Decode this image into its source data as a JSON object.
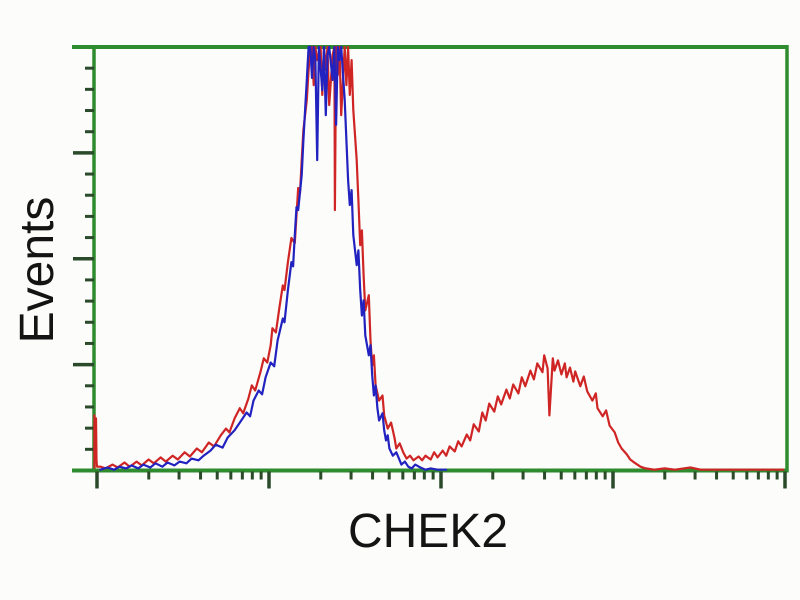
{
  "figure": {
    "background": "#fcfcfa",
    "colors": {
      "axis": "#2e8b2e",
      "tick": "#2a4a2a",
      "blue_series": "#2222c0",
      "red_series": "#cf2525",
      "label_text": "#141414"
    }
  },
  "chart_data": {
    "type": "line",
    "subtype": "flow-cytometry-histogram-overlay",
    "title": "",
    "xlabel": "CHEK2",
    "ylabel": "Events",
    "x_axis": {
      "scale": "log",
      "decades": 4,
      "numeric_labels_visible": false
    },
    "y_axis": {
      "scale": "linear",
      "range": [
        0,
        1
      ],
      "major_intervals": 4,
      "minor_ticks_per_major": 5,
      "numeric_labels_visible": false
    },
    "legend": null,
    "grid": false,
    "series": [
      {
        "name": "red-histogram-CHEK2-antibody",
        "color": "#cf2525",
        "points": [
          [
            -0.015,
            0.007
          ],
          [
            -0.015,
            0.13
          ],
          [
            -0.009,
            0.059
          ],
          [
            -0.006,
            0.123
          ],
          [
            -0.003,
            0.024
          ],
          [
            0.0,
            0.009
          ],
          [
            0.02,
            0.009
          ],
          [
            0.05,
            0.005
          ],
          [
            0.09,
            0.014
          ],
          [
            0.12,
            0.007
          ],
          [
            0.16,
            0.019
          ],
          [
            0.19,
            0.009
          ],
          [
            0.23,
            0.021
          ],
          [
            0.26,
            0.012
          ],
          [
            0.3,
            0.026
          ],
          [
            0.33,
            0.017
          ],
          [
            0.37,
            0.031
          ],
          [
            0.4,
            0.021
          ],
          [
            0.44,
            0.035
          ],
          [
            0.47,
            0.026
          ],
          [
            0.51,
            0.043
          ],
          [
            0.54,
            0.033
          ],
          [
            0.58,
            0.052
          ],
          [
            0.61,
            0.043
          ],
          [
            0.65,
            0.066
          ],
          [
            0.68,
            0.057
          ],
          [
            0.72,
            0.083
          ],
          [
            0.75,
            0.099
          ],
          [
            0.77,
            0.09
          ],
          [
            0.8,
            0.123
          ],
          [
            0.83,
            0.147
          ],
          [
            0.85,
            0.135
          ],
          [
            0.88,
            0.17
          ],
          [
            0.9,
            0.201
          ],
          [
            0.92,
            0.189
          ],
          [
            0.95,
            0.232
          ],
          [
            0.97,
            0.265
          ],
          [
            0.99,
            0.255
          ],
          [
            1.01,
            0.296
          ],
          [
            1.02,
            0.336
          ],
          [
            1.04,
            0.326
          ],
          [
            1.06,
            0.383
          ],
          [
            1.08,
            0.437
          ],
          [
            1.09,
            0.426
          ],
          [
            1.11,
            0.492
          ],
          [
            1.13,
            0.549
          ],
          [
            1.15,
            0.537
          ],
          [
            1.16,
            0.603
          ],
          [
            1.17,
            0.667
          ],
          [
            1.18,
            0.655
          ],
          [
            1.19,
            0.733
          ],
          [
            1.2,
            0.804
          ],
          [
            1.22,
            0.875
          ],
          [
            1.23,
            0.946
          ],
          [
            1.24,
            0.993
          ],
          [
            1.25,
            1.0
          ],
          [
            1.26,
            0.91
          ],
          [
            1.27,
            1.0
          ],
          [
            1.28,
            0.969
          ],
          [
            1.3,
            1.0
          ],
          [
            1.31,
            0.887
          ],
          [
            1.32,
            1.0
          ],
          [
            1.33,
            0.946
          ],
          [
            1.34,
            1.0
          ],
          [
            1.35,
            0.863
          ],
          [
            1.37,
            0.981
          ],
          [
            1.38,
            1.0
          ],
          [
            1.383,
            0.615
          ],
          [
            1.39,
            1.0
          ],
          [
            1.4,
            0.934
          ],
          [
            1.41,
            1.0
          ],
          [
            1.42,
            0.839
          ],
          [
            1.44,
            1.0
          ],
          [
            1.45,
            0.91
          ],
          [
            1.46,
            1.0
          ],
          [
            1.47,
            0.887
          ],
          [
            1.48,
            0.969
          ],
          [
            1.49,
            0.851
          ],
          [
            1.51,
            0.733
          ],
          [
            1.52,
            0.638
          ],
          [
            1.53,
            0.532
          ],
          [
            1.54,
            0.567
          ],
          [
            1.55,
            0.461
          ],
          [
            1.56,
            0.378
          ],
          [
            1.58,
            0.414
          ],
          [
            1.59,
            0.307
          ],
          [
            1.6,
            0.248
          ],
          [
            1.61,
            0.272
          ],
          [
            1.62,
            0.201
          ],
          [
            1.64,
            0.165
          ],
          [
            1.66,
            0.177
          ],
          [
            1.67,
            0.13
          ],
          [
            1.69,
            0.099
          ],
          [
            1.71,
            0.113
          ],
          [
            1.73,
            0.076
          ],
          [
            1.74,
            0.052
          ],
          [
            1.76,
            0.064
          ],
          [
            1.78,
            0.043
          ],
          [
            1.8,
            0.028
          ],
          [
            1.82,
            0.035
          ],
          [
            1.84,
            0.024
          ],
          [
            1.87,
            0.033
          ],
          [
            1.89,
            0.024
          ],
          [
            1.91,
            0.035
          ],
          [
            1.94,
            0.026
          ],
          [
            1.96,
            0.043
          ],
          [
            1.98,
            0.031
          ],
          [
            2.01,
            0.047
          ],
          [
            2.03,
            0.035
          ],
          [
            2.05,
            0.057
          ],
          [
            2.08,
            0.045
          ],
          [
            2.1,
            0.069
          ],
          [
            2.12,
            0.057
          ],
          [
            2.15,
            0.085
          ],
          [
            2.17,
            0.071
          ],
          [
            2.19,
            0.109
          ],
          [
            2.22,
            0.092
          ],
          [
            2.24,
            0.137
          ],
          [
            2.26,
            0.118
          ],
          [
            2.28,
            0.158
          ],
          [
            2.31,
            0.139
          ],
          [
            2.33,
            0.175
          ],
          [
            2.35,
            0.156
          ],
          [
            2.38,
            0.191
          ],
          [
            2.4,
            0.17
          ],
          [
            2.42,
            0.203
          ],
          [
            2.45,
            0.182
          ],
          [
            2.47,
            0.22
          ],
          [
            2.49,
            0.199
          ],
          [
            2.52,
            0.236
          ],
          [
            2.54,
            0.215
          ],
          [
            2.56,
            0.253
          ],
          [
            2.59,
            0.232
          ],
          [
            2.6,
            0.272
          ],
          [
            2.62,
            0.241
          ],
          [
            2.63,
            0.13
          ],
          [
            2.65,
            0.265
          ],
          [
            2.66,
            0.236
          ],
          [
            2.68,
            0.26
          ],
          [
            2.7,
            0.227
          ],
          [
            2.72,
            0.253
          ],
          [
            2.73,
            0.22
          ],
          [
            2.75,
            0.243
          ],
          [
            2.77,
            0.21
          ],
          [
            2.78,
            0.234
          ],
          [
            2.81,
            0.199
          ],
          [
            2.83,
            0.222
          ],
          [
            2.85,
            0.187
          ],
          [
            2.88,
            0.165
          ],
          [
            2.9,
            0.182
          ],
          [
            2.91,
            0.147
          ],
          [
            2.94,
            0.128
          ],
          [
            2.96,
            0.142
          ],
          [
            2.98,
            0.106
          ],
          [
            3.01,
            0.09
          ],
          [
            3.03,
            0.066
          ],
          [
            3.05,
            0.052
          ],
          [
            3.08,
            0.038
          ],
          [
            3.1,
            0.026
          ],
          [
            3.13,
            0.017
          ],
          [
            3.16,
            0.009
          ],
          [
            3.19,
            0.005
          ],
          [
            3.24,
            0.002
          ],
          [
            3.3,
            0.005
          ],
          [
            3.36,
            0.002
          ],
          [
            3.45,
            0.007
          ],
          [
            3.51,
            0.002
          ],
          [
            3.62,
            0.002
          ],
          [
            3.8,
            0.002
          ],
          [
            3.99,
            0.002
          ]
        ]
      },
      {
        "name": "blue-histogram-control",
        "color": "#2222c0",
        "points": [
          [
            0.02,
            0.002
          ],
          [
            0.06,
            0.007
          ],
          [
            0.1,
            0.002
          ],
          [
            0.13,
            0.009
          ],
          [
            0.17,
            0.005
          ],
          [
            0.2,
            0.012
          ],
          [
            0.24,
            0.005
          ],
          [
            0.27,
            0.014
          ],
          [
            0.31,
            0.007
          ],
          [
            0.34,
            0.017
          ],
          [
            0.38,
            0.009
          ],
          [
            0.41,
            0.019
          ],
          [
            0.45,
            0.012
          ],
          [
            0.48,
            0.021
          ],
          [
            0.52,
            0.017
          ],
          [
            0.55,
            0.028
          ],
          [
            0.59,
            0.024
          ],
          [
            0.62,
            0.035
          ],
          [
            0.66,
            0.047
          ],
          [
            0.69,
            0.061
          ],
          [
            0.73,
            0.054
          ],
          [
            0.76,
            0.078
          ],
          [
            0.8,
            0.095
          ],
          [
            0.83,
            0.113
          ],
          [
            0.87,
            0.137
          ],
          [
            0.89,
            0.128
          ],
          [
            0.91,
            0.165
          ],
          [
            0.94,
            0.189
          ],
          [
            0.96,
            0.18
          ],
          [
            0.98,
            0.22
          ],
          [
            1.01,
            0.255
          ],
          [
            1.03,
            0.246
          ],
          [
            1.05,
            0.307
          ],
          [
            1.08,
            0.359
          ],
          [
            1.09,
            0.35
          ],
          [
            1.11,
            0.426
          ],
          [
            1.13,
            0.492
          ],
          [
            1.14,
            0.482
          ],
          [
            1.15,
            0.556
          ],
          [
            1.16,
            0.622
          ],
          [
            1.17,
            0.615
          ],
          [
            1.19,
            0.697
          ],
          [
            1.2,
            0.78
          ],
          [
            1.21,
            0.851
          ],
          [
            1.22,
            0.922
          ],
          [
            1.23,
            1.0
          ],
          [
            1.24,
            1.0
          ],
          [
            1.25,
            0.927
          ],
          [
            1.26,
            1.0
          ],
          [
            1.27,
            0.969
          ],
          [
            1.28,
            0.733
          ],
          [
            1.29,
            1.0
          ],
          [
            1.31,
            0.898
          ],
          [
            1.32,
            1.0
          ],
          [
            1.33,
            0.839
          ],
          [
            1.34,
            0.981
          ],
          [
            1.35,
            1.0
          ],
          [
            1.37,
            0.922
          ],
          [
            1.38,
            1.0
          ],
          [
            1.39,
            0.816
          ],
          [
            1.4,
            1.0
          ],
          [
            1.41,
            0.969
          ],
          [
            1.42,
            1.0
          ],
          [
            1.44,
            0.875
          ],
          [
            1.45,
            0.78
          ],
          [
            1.46,
            0.686
          ],
          [
            1.47,
            0.627
          ],
          [
            1.48,
            0.662
          ],
          [
            1.49,
            0.556
          ],
          [
            1.51,
            0.485
          ],
          [
            1.52,
            0.52
          ],
          [
            1.53,
            0.426
          ],
          [
            1.54,
            0.366
          ],
          [
            1.55,
            0.402
          ],
          [
            1.56,
            0.319
          ],
          [
            1.58,
            0.272
          ],
          [
            1.59,
            0.296
          ],
          [
            1.6,
            0.225
          ],
          [
            1.61,
            0.177
          ],
          [
            1.62,
            0.201
          ],
          [
            1.63,
            0.147
          ],
          [
            1.64,
            0.118
          ],
          [
            1.66,
            0.135
          ],
          [
            1.67,
            0.095
          ],
          [
            1.68,
            0.071
          ],
          [
            1.69,
            0.083
          ],
          [
            1.7,
            0.052
          ],
          [
            1.72,
            0.035
          ],
          [
            1.74,
            0.043
          ],
          [
            1.76,
            0.024
          ],
          [
            1.77,
            0.014
          ],
          [
            1.79,
            0.021
          ],
          [
            1.81,
            0.009
          ],
          [
            1.83,
            0.005
          ],
          [
            1.85,
            0.014
          ],
          [
            1.88,
            0.007
          ],
          [
            1.91,
            0.002
          ],
          [
            1.94,
            0.005
          ],
          [
            1.98,
            0.002
          ],
          [
            2.03,
            0.002
          ]
        ]
      }
    ]
  }
}
